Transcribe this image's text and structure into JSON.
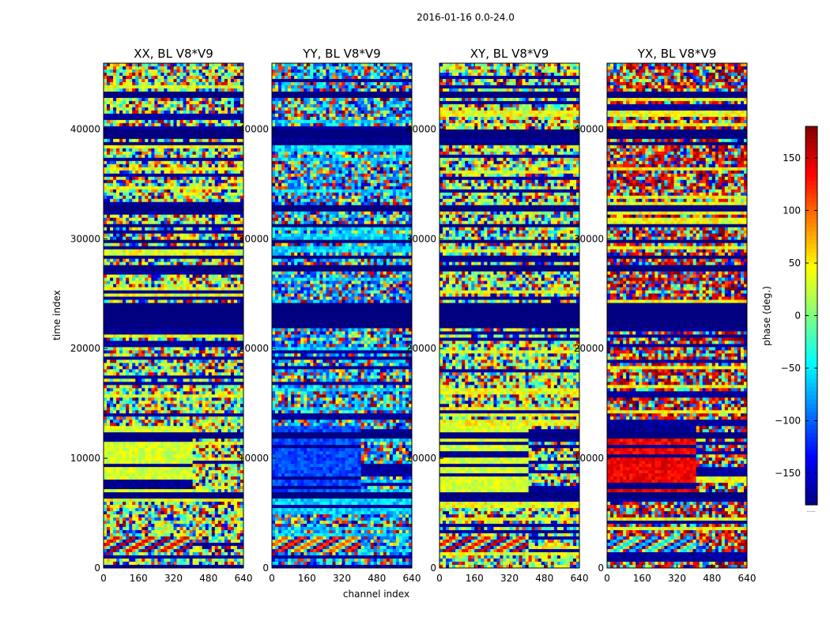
{
  "figure": {
    "suptitle": "2016-01-16 0.0-24.0",
    "xlabel": "channel index",
    "ylabel": "time index",
    "colorbar_label": "phase (deg.)",
    "colorbar_footer": "......"
  },
  "chart_data": {
    "type": "heatmap",
    "colormap": "jet",
    "colorbar": {
      "label": "phase (deg.)",
      "range": [
        -180,
        180
      ],
      "ticks": [
        -150,
        -100,
        -50,
        0,
        50,
        100,
        150
      ],
      "tick_labels": [
        "−150",
        "−100",
        "−50",
        "0",
        "50",
        "100",
        "150"
      ]
    },
    "xlim": [
      0,
      640
    ],
    "ylim": [
      0,
      46000
    ],
    "x_ticks": [
      0,
      160,
      320,
      480,
      640
    ],
    "x_tick_labels": [
      "0",
      "160",
      "320",
      "480",
      "640"
    ],
    "y_ticks": [
      0,
      10000,
      20000,
      30000,
      40000
    ],
    "y_tick_labels": [
      "0",
      "10000",
      "20000",
      "30000",
      "40000"
    ],
    "xlabel": "channel index",
    "ylabel": "time index",
    "panels": [
      {
        "title": "XX, BL V8*V9",
        "polarization": "XX",
        "base_phase": 20,
        "alt_phase": 40,
        "low_block_phase": 30,
        "stripe_phase": -30
      },
      {
        "title": "YY, BL V8*V9",
        "polarization": "YY",
        "base_phase": -80,
        "alt_phase": -60,
        "low_block_phase": -110,
        "stripe_phase": -70
      },
      {
        "title": "XY, BL V8*V9",
        "polarization": "XY",
        "base_phase": 20,
        "alt_phase": 40,
        "low_block_phase": 30,
        "stripe_phase": -40
      },
      {
        "title": "YX, BL V8*V9",
        "polarization": "YX",
        "base_phase": 150,
        "alt_phase": 40,
        "low_block_phase": 140,
        "stripe_phase": 120
      }
    ],
    "flagged_phase": -180,
    "flagged_time_ranges": [
      [
        6300,
        7000
      ],
      [
        11900,
        12400
      ],
      [
        21800,
        24100
      ],
      [
        26900,
        27500
      ],
      [
        28100,
        28500
      ],
      [
        29500,
        29800
      ],
      [
        31000,
        31300
      ],
      [
        32600,
        33000
      ],
      [
        38400,
        38800
      ],
      [
        39000,
        40000
      ],
      [
        42800,
        43300
      ]
    ],
    "band_edge_channel": 410
  },
  "colors": {
    "background": "#ffffff",
    "axis": "#000000",
    "flagged": "#00007f"
  }
}
